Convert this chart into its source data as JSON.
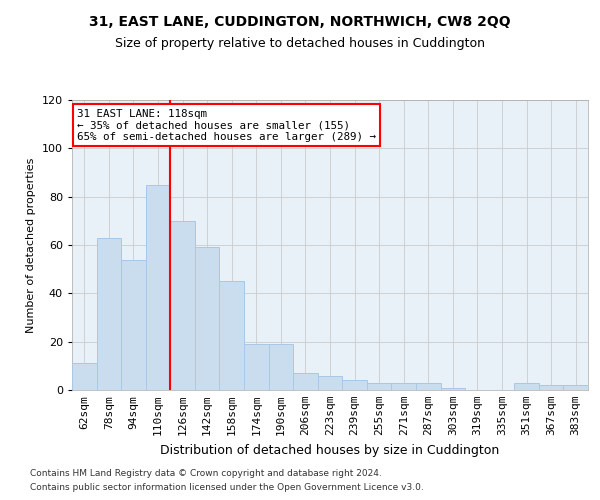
{
  "title": "31, EAST LANE, CUDDINGTON, NORTHWICH, CW8 2QQ",
  "subtitle": "Size of property relative to detached houses in Cuddington",
  "xlabel": "Distribution of detached houses by size in Cuddington",
  "ylabel": "Number of detached properties",
  "categories": [
    "62sqm",
    "78sqm",
    "94sqm",
    "110sqm",
    "126sqm",
    "142sqm",
    "158sqm",
    "174sqm",
    "190sqm",
    "206sqm",
    "223sqm",
    "239sqm",
    "255sqm",
    "271sqm",
    "287sqm",
    "303sqm",
    "319sqm",
    "335sqm",
    "351sqm",
    "367sqm",
    "383sqm"
  ],
  "values": [
    11,
    63,
    54,
    85,
    70,
    59,
    45,
    19,
    19,
    7,
    6,
    4,
    3,
    3,
    3,
    1,
    0,
    0,
    3,
    2,
    2
  ],
  "bar_color": "#c9ddef",
  "bar_edgecolor": "#a8c8e8",
  "grid_color": "#cccccc",
  "background_color": "#e8f0f8",
  "annotation_line1": "31 EAST LANE: 118sqm",
  "annotation_line2": "← 35% of detached houses are smaller (155)",
  "annotation_line3": "65% of semi-detached houses are larger (289) →",
  "annotation_box_edgecolor": "red",
  "redline_x": 3.5,
  "ylim": [
    0,
    120
  ],
  "yticks": [
    0,
    20,
    40,
    60,
    80,
    100,
    120
  ],
  "title_fontsize": 10,
  "subtitle_fontsize": 9,
  "ylabel_fontsize": 8,
  "xlabel_fontsize": 9,
  "tick_fontsize": 8,
  "footnote1": "Contains HM Land Registry data © Crown copyright and database right 2024.",
  "footnote2": "Contains public sector information licensed under the Open Government Licence v3.0.",
  "footnote_fontsize": 6.5
}
